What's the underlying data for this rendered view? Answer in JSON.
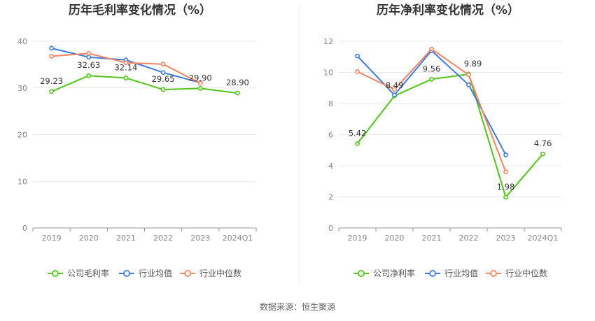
{
  "source_text": "数据来源：恒生聚源",
  "chart_data": [
    {
      "type": "line",
      "title": "历年毛利率变化情况（%）",
      "categories": [
        "2019",
        "2020",
        "2021",
        "2022",
        "2023",
        "2024Q1"
      ],
      "ylim": [
        0,
        40
      ],
      "yticks": [
        0,
        10,
        20,
        30,
        40
      ],
      "grid": true,
      "legend_position": "bottom",
      "series": [
        {
          "name": "公司毛利率",
          "color": "#52c41a",
          "values": [
            29.23,
            32.63,
            32.14,
            29.65,
            29.9,
            28.9
          ],
          "labels": [
            "29.23",
            "32.63",
            "32.14",
            "29.65",
            "29.90",
            "28.90"
          ]
        },
        {
          "name": "行业均值",
          "color": "#3d7be0",
          "values": [
            38.5,
            36.6,
            36.0,
            33.3,
            31.1,
            null
          ]
        },
        {
          "name": "行业中位数",
          "color": "#f4845f",
          "values": [
            36.8,
            37.4,
            35.4,
            35.1,
            31.0,
            null
          ]
        }
      ]
    },
    {
      "type": "line",
      "title": "历年净利率变化情况（%）",
      "categories": [
        "2019",
        "2020",
        "2021",
        "2022",
        "2023",
        "2024Q1"
      ],
      "ylim": [
        0,
        12
      ],
      "yticks": [
        0,
        2,
        4,
        6,
        8,
        10,
        12
      ],
      "grid": true,
      "legend_position": "bottom",
      "series": [
        {
          "name": "公司净利率",
          "color": "#52c41a",
          "values": [
            5.42,
            8.49,
            9.56,
            9.89,
            1.98,
            4.76
          ],
          "labels": [
            "5.42",
            "8.49",
            "9.56",
            "9.89",
            "1.98",
            "4.76"
          ]
        },
        {
          "name": "行业均值",
          "color": "#3d7be0",
          "values": [
            11.05,
            8.55,
            11.4,
            9.2,
            4.7,
            null
          ]
        },
        {
          "name": "行业中位数",
          "color": "#f4845f",
          "values": [
            10.05,
            8.9,
            11.5,
            9.85,
            3.6,
            null
          ]
        }
      ]
    }
  ]
}
